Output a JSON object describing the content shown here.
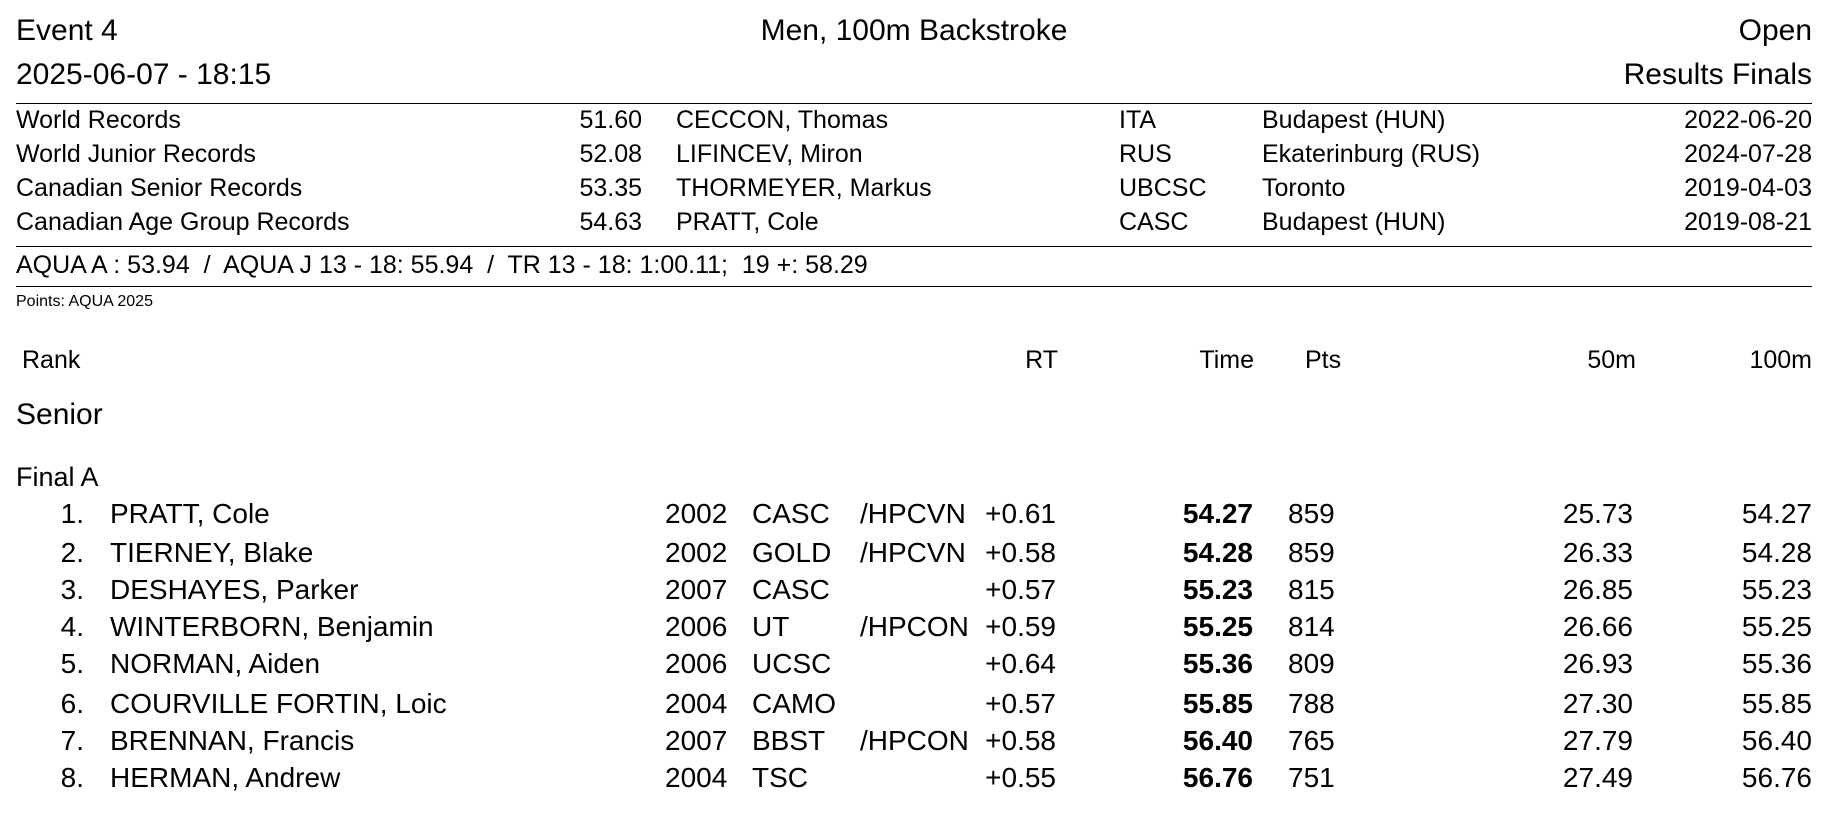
{
  "header": {
    "event": "Event 4",
    "title": "Men, 100m Backstroke",
    "category": "Open",
    "datetime": "2025-06-07 - 18:15",
    "results_type": "Results Finals"
  },
  "records": [
    {
      "label": "World Records",
      "time": "51.60",
      "name": "CECCON, Thomas",
      "code": "ITA",
      "place": "Budapest (HUN)",
      "date": "2022-06-20"
    },
    {
      "label": "World Junior Records",
      "time": "52.08",
      "name": "LIFINCEV, Miron",
      "code": "RUS",
      "place": "Ekaterinburg (RUS)",
      "date": "2024-07-28"
    },
    {
      "label": "Canadian Senior Records",
      "time": "53.35",
      "name": "THORMEYER, Markus",
      "code": "UBCSC",
      "place": "Toronto",
      "date": "2019-04-03"
    },
    {
      "label": "Canadian Age Group Records",
      "time": "54.63",
      "name": "PRATT, Cole",
      "code": "CASC",
      "place": "Budapest (HUN)",
      "date": "2019-08-21"
    }
  ],
  "standards": "AQUA A : 53.94  /  AQUA J 13 - 18: 55.94  /  TR 13 - 18: 1:00.11;  19 +: 58.29",
  "points_note": "Points: AQUA 2025",
  "columns": {
    "rank": "Rank",
    "rt": "RT",
    "time": "Time",
    "pts": "Pts",
    "split50": "50m",
    "split100": "100m"
  },
  "section": "Senior",
  "final": "Final A",
  "results": [
    {
      "rank": "1.",
      "name": "PRATT, Cole",
      "year": "2002",
      "club": "CASC",
      "prog": "/HPCVN",
      "rt": "+0.61",
      "time": "54.27",
      "pts": "859",
      "s50": "25.73",
      "s100": "54.27"
    },
    {
      "rank": "2.",
      "name": "TIERNEY, Blake",
      "year": "2002",
      "club": "GOLD",
      "prog": "/HPCVN",
      "rt": "+0.58",
      "time": "54.28",
      "pts": "859",
      "s50": "26.33",
      "s100": "54.28"
    },
    {
      "rank": "3.",
      "name": "DESHAYES, Parker",
      "year": "2007",
      "club": "CASC",
      "prog": "",
      "rt": "+0.57",
      "time": "55.23",
      "pts": "815",
      "s50": "26.85",
      "s100": "55.23"
    },
    {
      "rank": "4.",
      "name": "WINTERBORN, Benjamin",
      "year": "2006",
      "club": "UT",
      "prog": "/HPCON",
      "rt": "+0.59",
      "time": "55.25",
      "pts": "814",
      "s50": "26.66",
      "s100": "55.25"
    },
    {
      "rank": "5.",
      "name": "NORMAN, Aiden",
      "year": "2006",
      "club": "UCSC",
      "prog": "",
      "rt": "+0.64",
      "time": "55.36",
      "pts": "809",
      "s50": "26.93",
      "s100": "55.36"
    },
    {
      "rank": "6.",
      "name": "COURVILLE FORTIN, Loic",
      "year": "2004",
      "club": "CAMO",
      "prog": "",
      "rt": "+0.57",
      "time": "55.85",
      "pts": "788",
      "s50": "27.30",
      "s100": "55.85"
    },
    {
      "rank": "7.",
      "name": "BRENNAN, Francis",
      "year": "2007",
      "club": "BBST",
      "prog": "/HPCON",
      "rt": "+0.58",
      "time": "56.40",
      "pts": "765",
      "s50": "27.79",
      "s100": "56.40"
    },
    {
      "rank": "8.",
      "name": "HERMAN, Andrew",
      "year": "2004",
      "club": "TSC",
      "prog": "",
      "rt": "+0.55",
      "time": "56.76",
      "pts": "751",
      "s50": "27.49",
      "s100": "56.76"
    }
  ]
}
